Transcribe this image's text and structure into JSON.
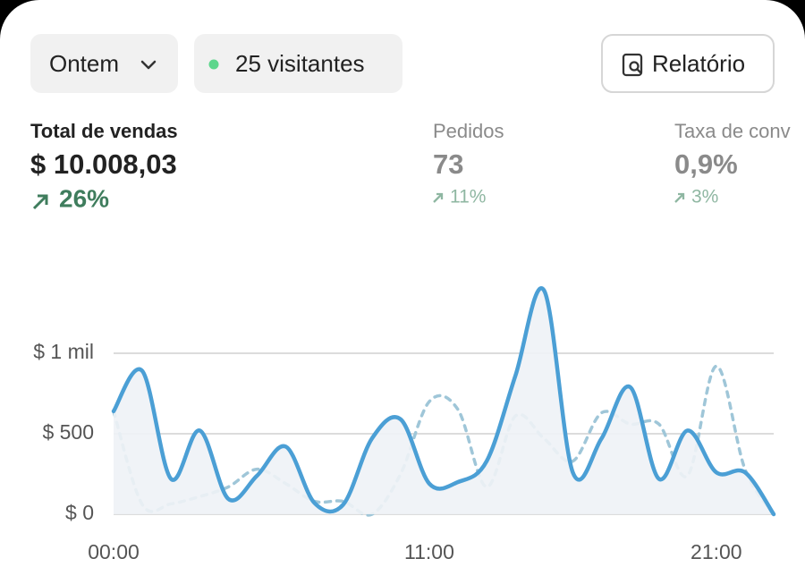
{
  "filters": {
    "period": "Ontem",
    "visitors": "25 visitantes",
    "report": "Relatório"
  },
  "metrics": [
    {
      "label": "Total de vendas",
      "value": "$ 10.008,03",
      "change": "26%"
    },
    {
      "label": "Pedidos",
      "value": "73",
      "change": "11%"
    },
    {
      "label": "Taxa de conv",
      "value": "0,9%",
      "change": "3%"
    }
  ],
  "chart_data": {
    "type": "line",
    "categories": [
      "00:00",
      null,
      null,
      null,
      null,
      null,
      null,
      null,
      null,
      null,
      null,
      "11:00",
      null,
      null,
      null,
      null,
      null,
      null,
      null,
      null,
      null,
      "21:00",
      null,
      null
    ],
    "series": [
      {
        "color": "#4b9fd5",
        "style": "solid",
        "area": true,
        "values": [
          640,
          890,
          220,
          520,
          95,
          240,
          420,
          70,
          60,
          470,
          590,
          190,
          200,
          330,
          860,
          1390,
          260,
          470,
          790,
          220,
          520,
          260,
          260,
          0
        ]
      },
      {
        "color": "#9fc6d8",
        "style": "dashed",
        "values": [
          640,
          60,
          65,
          110,
          170,
          280,
          190,
          80,
          80,
          0,
          250,
          700,
          650,
          170,
          610,
          470,
          330,
          630,
          560,
          560,
          240,
          920,
          280,
          0
        ]
      }
    ],
    "ylim": [
      0,
      1500
    ],
    "yticks": [
      {
        "value": 0,
        "label": "$ 0"
      },
      {
        "value": 500,
        "label": "$ 500"
      },
      {
        "value": 1000,
        "label": "$ 1 mil"
      }
    ],
    "grid": true
  }
}
